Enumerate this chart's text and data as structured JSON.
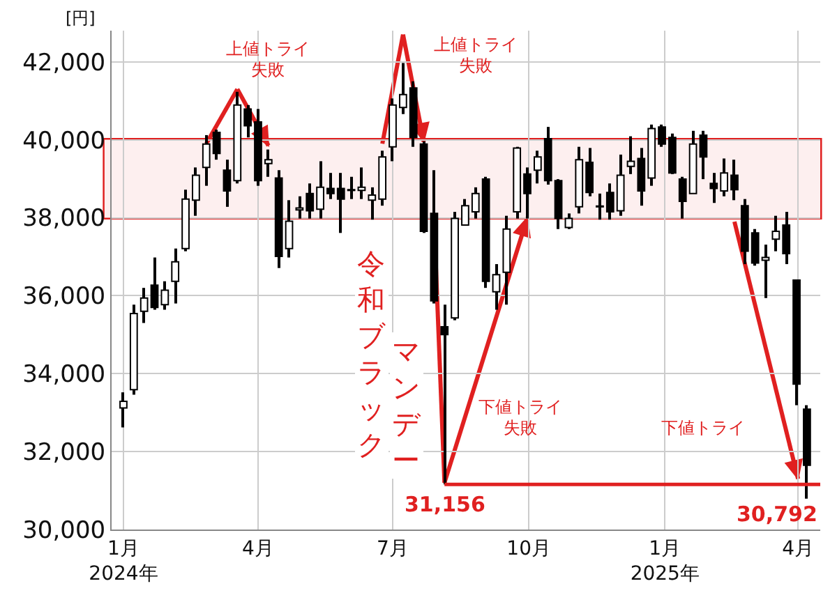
{
  "chart_data": {
    "type": "candlestick",
    "ylabel": "[円]",
    "x": [
      "2024-01-01",
      "2024-01-08",
      "2024-01-15",
      "2024-01-22",
      "2024-01-29",
      "2024-02-05",
      "2024-02-12",
      "2024-02-19",
      "2024-02-26",
      "2024-03-04",
      "2024-03-11",
      "2024-03-18",
      "2024-03-25",
      "2024-04-01",
      "2024-04-08",
      "2024-04-15",
      "2024-04-22",
      "2024-04-29",
      "2024-05-06",
      "2024-05-13",
      "2024-05-20",
      "2024-05-27",
      "2024-06-03",
      "2024-06-10",
      "2024-06-17",
      "2024-06-24",
      "2024-07-01",
      "2024-07-08",
      "2024-07-15",
      "2024-07-22",
      "2024-07-29",
      "2024-08-05",
      "2024-08-12",
      "2024-08-19",
      "2024-08-26",
      "2024-09-02",
      "2024-09-09",
      "2024-09-16",
      "2024-09-23",
      "2024-09-30",
      "2024-10-07",
      "2024-10-14",
      "2024-10-21",
      "2024-10-28",
      "2024-11-04",
      "2024-11-11",
      "2024-11-18",
      "2024-11-25",
      "2024-12-02",
      "2024-12-09",
      "2024-12-16",
      "2024-12-23",
      "2024-12-30",
      "2025-01-06",
      "2025-01-13",
      "2025-01-20",
      "2025-01-27",
      "2025-02-03",
      "2025-02-10",
      "2025-02-17",
      "2025-02-24",
      "2025-03-03",
      "2025-03-10",
      "2025-03-17",
      "2025-03-24",
      "2025-03-31",
      "2025-04-07"
    ],
    "ohlc": [
      [
        33120,
        33520,
        32620,
        33290
      ],
      [
        33590,
        35770,
        33460,
        35540
      ],
      [
        35600,
        36200,
        35300,
        35940
      ],
      [
        36270,
        36980,
        35640,
        35700
      ],
      [
        35770,
        36370,
        35640,
        36140
      ],
      [
        36370,
        37210,
        35800,
        36870
      ],
      [
        37210,
        38720,
        37140,
        38480
      ],
      [
        38450,
        39290,
        38050,
        39090
      ],
      [
        39290,
        40120,
        38820,
        39890
      ],
      [
        40190,
        40260,
        39490,
        39650
      ],
      [
        39220,
        39490,
        38280,
        38690
      ],
      [
        38950,
        41230,
        38880,
        40890
      ],
      [
        40790,
        40890,
        40060,
        40360
      ],
      [
        40460,
        40790,
        38820,
        38950
      ],
      [
        39390,
        39750,
        39050,
        39490
      ],
      [
        39020,
        39220,
        36710,
        37010
      ],
      [
        37210,
        38450,
        36980,
        37910
      ],
      [
        38200,
        38550,
        37980,
        38250
      ],
      [
        38620,
        38880,
        37980,
        38180
      ],
      [
        38220,
        39450,
        37980,
        38780
      ],
      [
        38750,
        39150,
        38480,
        38620
      ],
      [
        38750,
        39150,
        37610,
        38480
      ],
      [
        38700,
        39050,
        38480,
        38720
      ],
      [
        38700,
        39290,
        38480,
        38780
      ],
      [
        38450,
        38780,
        37950,
        38580
      ],
      [
        38480,
        39720,
        38310,
        39560
      ],
      [
        39820,
        41060,
        39450,
        40890
      ],
      [
        40830,
        41970,
        40660,
        41160
      ],
      [
        41330,
        41500,
        39820,
        40060
      ],
      [
        39890,
        39960,
        37610,
        37650
      ],
      [
        38110,
        39220,
        35800,
        35870
      ],
      [
        35200,
        35770,
        31156,
        35000
      ],
      [
        35430,
        38150,
        35370,
        37980
      ],
      [
        37810,
        38480,
        37810,
        38310
      ],
      [
        38150,
        38780,
        37980,
        38620
      ],
      [
        38990,
        39050,
        36200,
        36370
      ],
      [
        36100,
        36810,
        35640,
        36540
      ],
      [
        36600,
        38050,
        35770,
        37710
      ],
      [
        38150,
        39820,
        37980,
        39790
      ],
      [
        39120,
        39290,
        37980,
        38620
      ],
      [
        39220,
        39720,
        38880,
        39560
      ],
      [
        40030,
        40330,
        38850,
        38950
      ],
      [
        38950,
        38990,
        37710,
        37980
      ],
      [
        37750,
        38110,
        37710,
        37980
      ],
      [
        38280,
        39820,
        38110,
        39490
      ],
      [
        39420,
        39790,
        38550,
        38650
      ],
      [
        38300,
        38620,
        37950,
        38280
      ],
      [
        38650,
        38880,
        37950,
        38150
      ],
      [
        38180,
        39620,
        38050,
        39090
      ],
      [
        39320,
        40090,
        39120,
        39450
      ],
      [
        39520,
        39790,
        38310,
        38690
      ],
      [
        39020,
        40390,
        38820,
        40290
      ],
      [
        40330,
        40390,
        39820,
        39890
      ],
      [
        40060,
        40160,
        39120,
        39150
      ],
      [
        38990,
        39050,
        37980,
        38420
      ],
      [
        38620,
        40230,
        38620,
        39890
      ],
      [
        40120,
        40230,
        38990,
        39560
      ],
      [
        38880,
        39150,
        38380,
        38750
      ],
      [
        38690,
        39520,
        38550,
        39150
      ],
      [
        39090,
        39490,
        38450,
        38720
      ],
      [
        38310,
        38480,
        36810,
        37140
      ],
      [
        37610,
        37710,
        36770,
        36840
      ],
      [
        36910,
        37310,
        35940,
        36980
      ],
      [
        37450,
        38050,
        37140,
        37650
      ],
      [
        37810,
        38150,
        36810,
        37080
      ],
      [
        36400,
        36400,
        33190,
        33730
      ],
      [
        33090,
        33190,
        30792,
        31650
      ]
    ],
    "xlim": [
      "2023-12-24",
      "2025-04-16"
    ],
    "xticks": [
      {
        "value": "2024-01-01",
        "label": "1月\n2024年"
      },
      {
        "value": "2024-04-01",
        "label": "4月"
      },
      {
        "value": "2024-07-01",
        "label": "7月"
      },
      {
        "value": "2024-10-01",
        "label": "10月"
      },
      {
        "value": "2025-01-01",
        "label": "1月\n2025年"
      },
      {
        "value": "2025-04-01",
        "label": "4月"
      }
    ],
    "ylim": [
      30000,
      42800
    ],
    "yticks": [
      {
        "value": 30000,
        "label": "30,000"
      },
      {
        "value": 32000,
        "label": "32,000"
      },
      {
        "value": 34000,
        "label": "34,000"
      },
      {
        "value": 36000,
        "label": "36,000"
      },
      {
        "value": 38000,
        "label": "38,000"
      },
      {
        "value": 40000,
        "label": "40,000"
      },
      {
        "value": 42000,
        "label": "42,000"
      }
    ],
    "grid": true,
    "bands": [
      {
        "axis": "y",
        "from": 38000,
        "to": 40000,
        "color": "#e02020"
      }
    ],
    "ref_lines": [
      {
        "axis": "y",
        "value": 31156,
        "color": "#e02020"
      }
    ],
    "annotations": [
      "上値トライ",
      {
        "text": "失敗",
        "x": "2024-04-08",
        "y": 40000
      },
      "上値トライ",
      "失敗",
      "令和ブラック",
      {
        "text": "マンデー",
        "x": "2024-08-05",
        "y": 31156
      },
      "下値トライ",
      "失敗",
      "下値トライ",
      {
        "text": "30,792",
        "x": "2025-04-07",
        "y": 30792
      },
      {
        "text": "31,156",
        "x": "2024-08-05",
        "y": 31156
      }
    ]
  }
}
